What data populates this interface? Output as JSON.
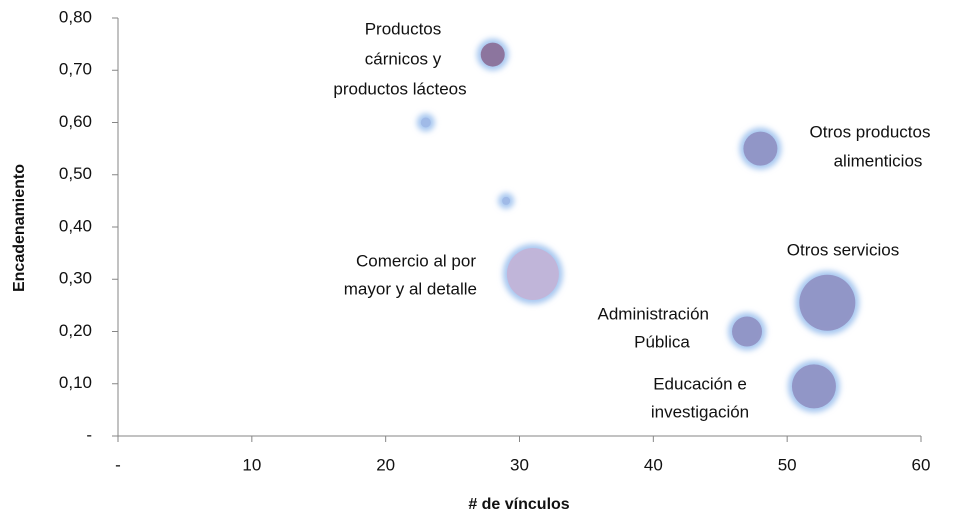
{
  "chart_data": {
    "type": "bubble",
    "xlabel": "# de vínculos",
    "ylabel": "Encadenamiento",
    "categories": [
      [
        "Productos",
        "cárnicos y",
        "productos lácteos"
      ],
      null,
      null,
      [
        "Otros productos",
        "alimenticios"
      ],
      [
        "Comercio al por",
        "mayor y al detalle"
      ],
      [
        "Otros servicios"
      ],
      [
        "Administración",
        "Pública"
      ],
      [
        "Educación e",
        "investigación"
      ]
    ],
    "x": [
      28,
      23,
      29,
      48,
      31,
      53,
      47,
      52
    ],
    "values": [
      0.73,
      0.6,
      0.45,
      0.55,
      0.31,
      0.255,
      0.2,
      0.095
    ],
    "sizes": [
      144,
      25,
      16,
      289,
      676,
      784,
      225,
      484
    ],
    "colors": [
      "#8a6b95",
      "#9fb8e6",
      "#9fb8e6",
      "#8f90c2",
      "#c3b2d6",
      "#8f90c2",
      "#8f90c2",
      "#8f90c2"
    ],
    "glow_color": "#a7c7f0",
    "xlim": [
      0,
      60
    ],
    "xticks": [
      {
        "value": 0,
        "label": "-"
      },
      10,
      20,
      30,
      40,
      50,
      60
    ],
    "ylim": [
      0,
      0.8
    ],
    "yticks": [
      {
        "value": 0,
        "label": "-"
      },
      {
        "value": 0.1,
        "label": "0,10"
      },
      {
        "value": 0.2,
        "label": "0,20"
      },
      {
        "value": 0.3,
        "label": "0,30"
      },
      {
        "value": 0.4,
        "label": "0,40"
      },
      {
        "value": 0.5,
        "label": "0,50"
      },
      {
        "value": 0.6,
        "label": "0,60"
      },
      {
        "value": 0.7,
        "label": "0,70"
      },
      {
        "value": 0.8,
        "label": "0,80"
      }
    ],
    "grid": false
  }
}
